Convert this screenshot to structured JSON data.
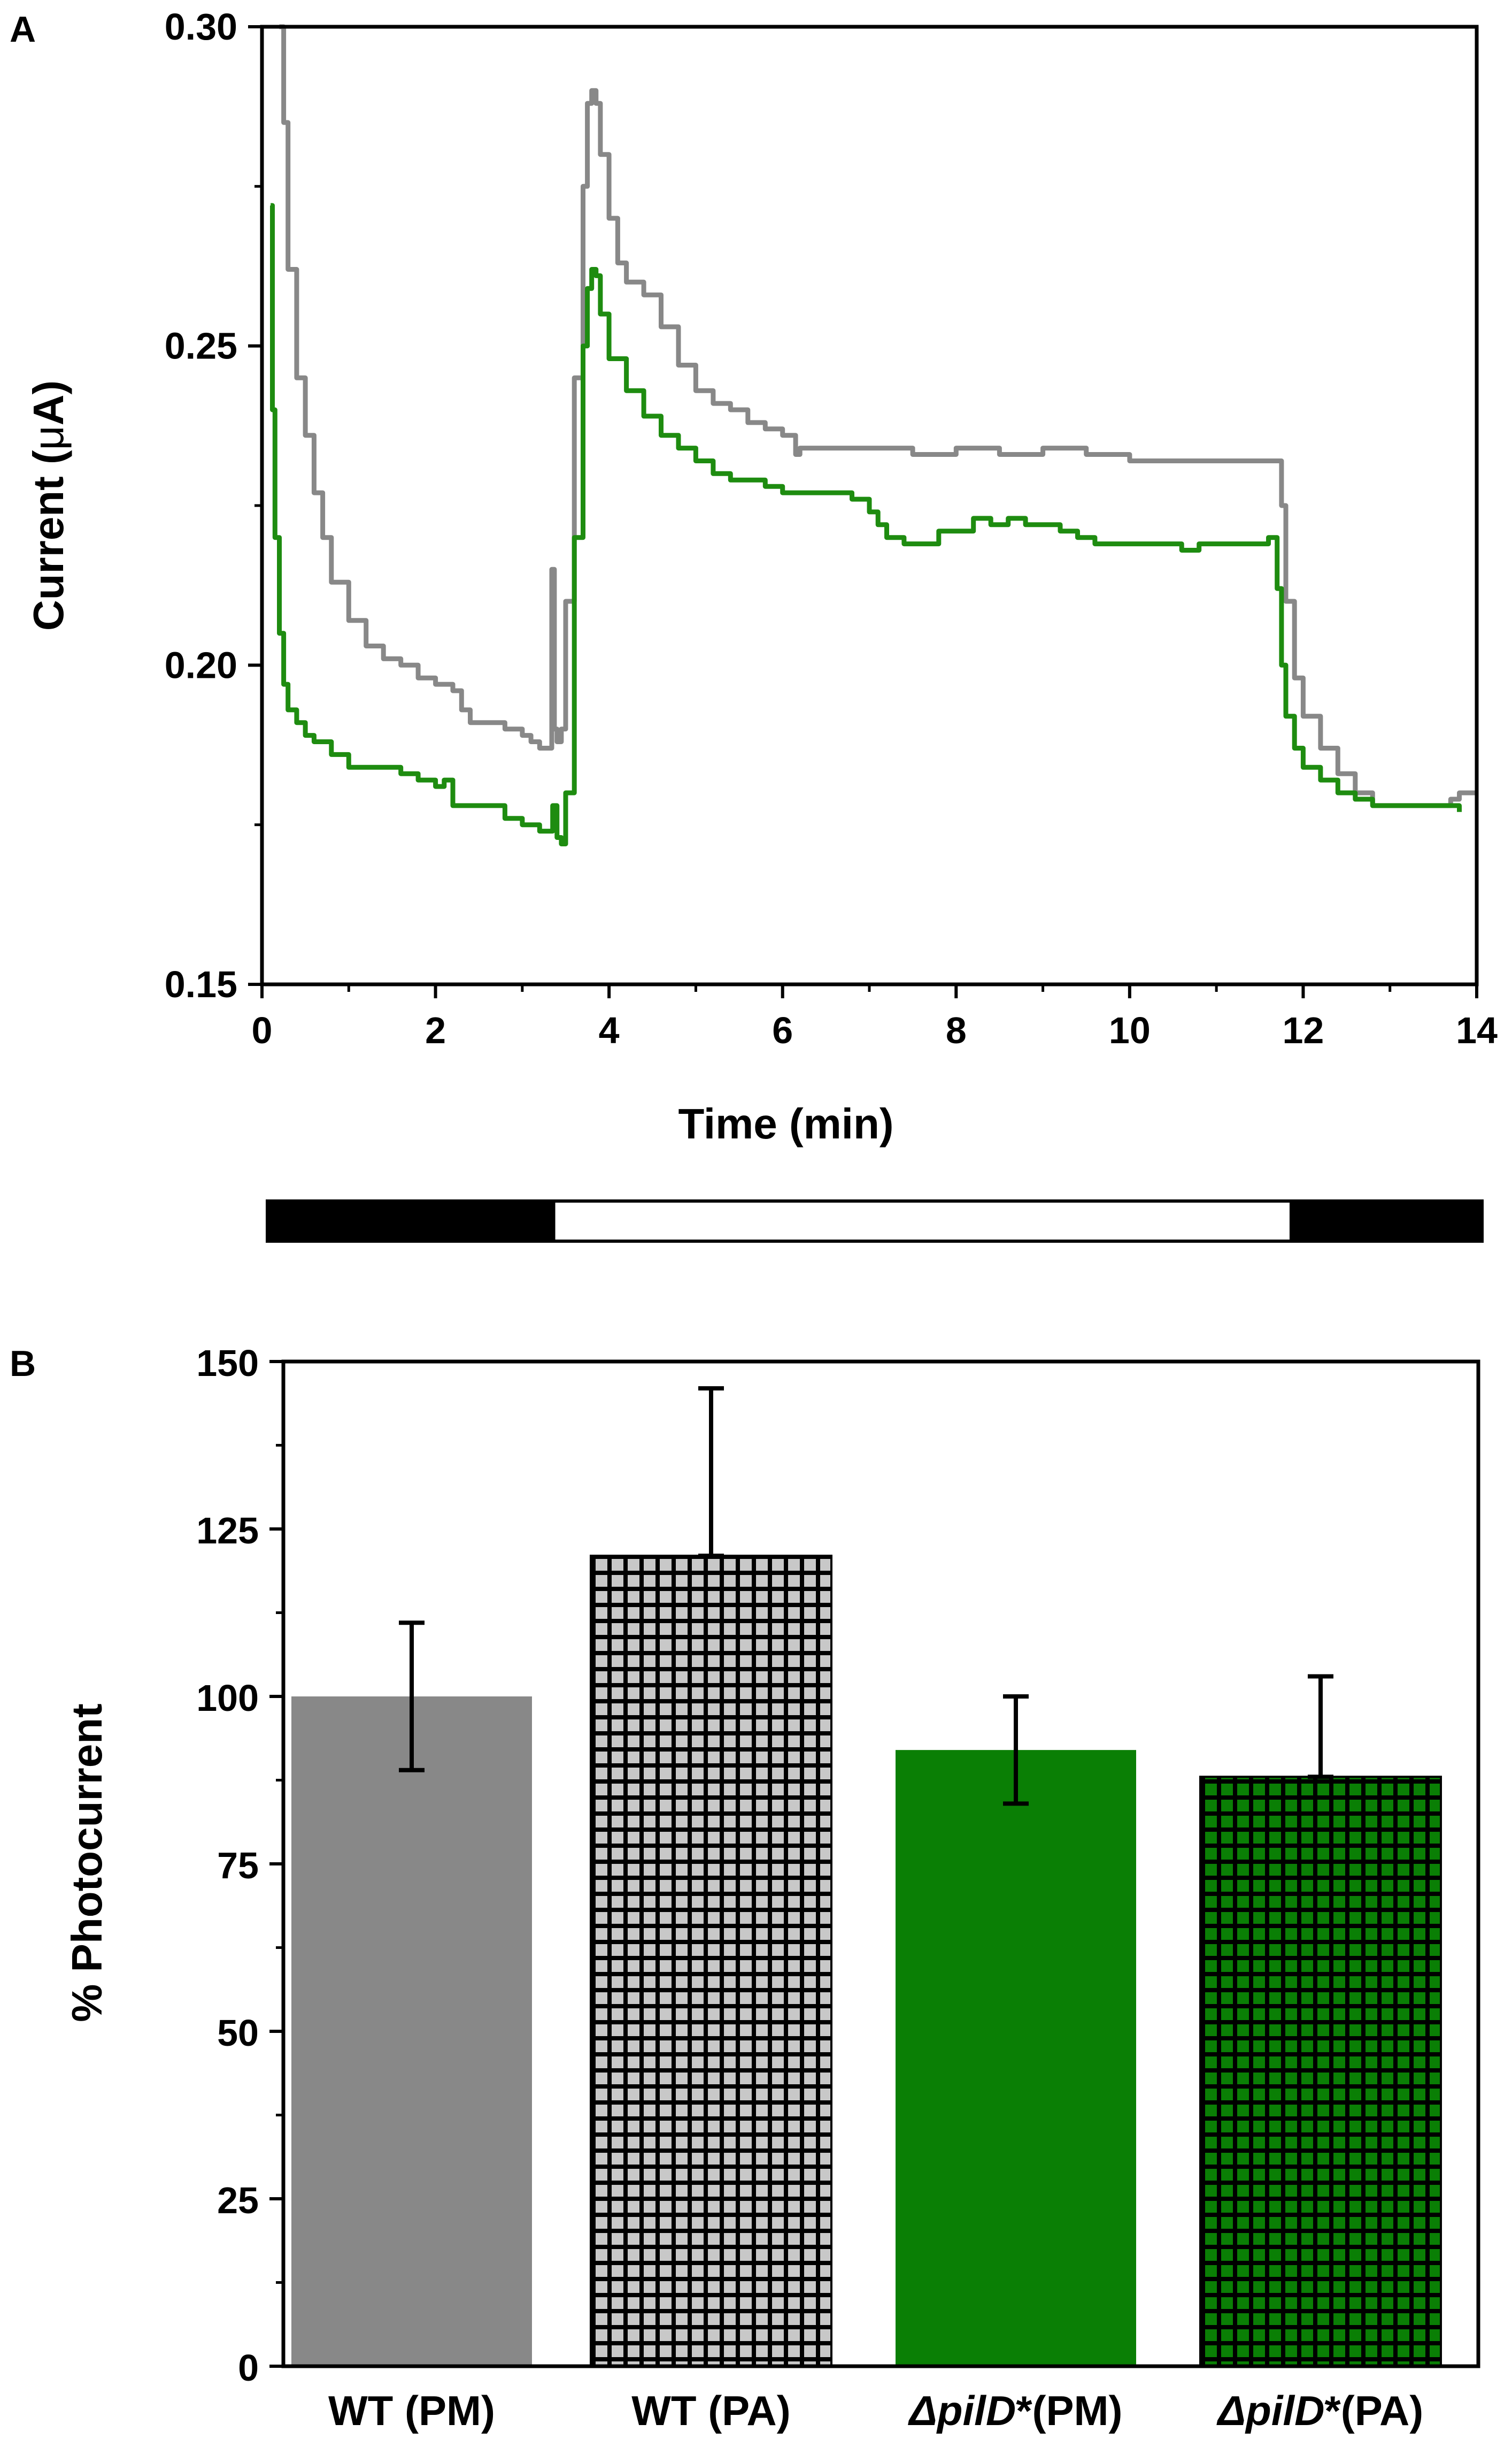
{
  "chart_data": [
    {
      "panel": "A",
      "type": "line",
      "xlabel": "Time (min)",
      "ylabel_prefix": "Current (",
      "ylabel_mu": "μ",
      "ylabel_suffix": "A)",
      "xlim": [
        0,
        14
      ],
      "ylim": [
        0.15,
        0.3
      ],
      "xticks": [
        0,
        2,
        4,
        6,
        8,
        10,
        12,
        14
      ],
      "xtick_labels": [
        "0",
        "2",
        "4",
        "6",
        "8",
        "10",
        "12",
        "14"
      ],
      "yticks": [
        0.15,
        0.2,
        0.25,
        0.3
      ],
      "ytick_labels": [
        "0.15",
        "0.20",
        "0.25",
        "0.30"
      ],
      "series": [
        {
          "name": "gray",
          "color": "#888888",
          "x": [
            0.2,
            0.25,
            0.3,
            0.4,
            0.5,
            0.6,
            0.7,
            0.8,
            1.0,
            1.2,
            1.4,
            1.6,
            1.8,
            2.0,
            2.2,
            2.3,
            2.4,
            2.6,
            2.8,
            3.0,
            3.1,
            3.2,
            3.3,
            3.34,
            3.37,
            3.4,
            3.45,
            3.5,
            3.6,
            3.7,
            3.75,
            3.8,
            3.85,
            3.9,
            4.0,
            4.1,
            4.2,
            4.4,
            4.6,
            4.8,
            5.0,
            5.2,
            5.4,
            5.6,
            5.8,
            6.0,
            6.1,
            6.15,
            6.2,
            6.4,
            6.8,
            7.0,
            7.5,
            8.0,
            8.5,
            9.0,
            9.5,
            10.0,
            10.5,
            11.0,
            11.5,
            11.7,
            11.75,
            11.8,
            11.9,
            12.0,
            12.2,
            12.4,
            12.6,
            12.8,
            13.0,
            13.5,
            13.7,
            13.8,
            14.0
          ],
          "y": [
            0.3,
            0.285,
            0.262,
            0.245,
            0.236,
            0.227,
            0.22,
            0.213,
            0.207,
            0.203,
            0.201,
            0.2,
            0.198,
            0.197,
            0.196,
            0.193,
            0.191,
            0.191,
            0.19,
            0.189,
            0.188,
            0.187,
            0.187,
            0.215,
            0.19,
            0.188,
            0.19,
            0.21,
            0.245,
            0.275,
            0.288,
            0.29,
            0.288,
            0.28,
            0.27,
            0.263,
            0.26,
            0.258,
            0.253,
            0.247,
            0.243,
            0.241,
            0.24,
            0.238,
            0.237,
            0.236,
            0.236,
            0.233,
            0.234,
            0.234,
            0.234,
            0.234,
            0.233,
            0.234,
            0.233,
            0.234,
            0.233,
            0.232,
            0.232,
            0.232,
            0.232,
            0.232,
            0.225,
            0.21,
            0.198,
            0.192,
            0.187,
            0.183,
            0.18,
            0.178,
            0.178,
            0.178,
            0.179,
            0.18,
            0.18
          ]
        },
        {
          "name": "green",
          "color": "#1e8c10",
          "x": [
            0.1,
            0.12,
            0.15,
            0.2,
            0.25,
            0.3,
            0.4,
            0.5,
            0.6,
            0.8,
            1.0,
            1.2,
            1.4,
            1.6,
            1.8,
            2.0,
            2.1,
            2.2,
            2.4,
            2.6,
            2.8,
            3.0,
            3.1,
            3.2,
            3.3,
            3.35,
            3.4,
            3.45,
            3.5,
            3.6,
            3.7,
            3.75,
            3.8,
            3.85,
            3.9,
            4.0,
            4.2,
            4.4,
            4.6,
            4.8,
            5.0,
            5.2,
            5.4,
            5.6,
            5.8,
            6.0,
            6.2,
            6.4,
            6.6,
            6.8,
            7.0,
            7.1,
            7.2,
            7.4,
            7.6,
            7.8,
            8.0,
            8.2,
            8.4,
            8.6,
            8.8,
            9.0,
            9.2,
            9.4,
            9.6,
            9.8,
            10.0,
            10.2,
            10.4,
            10.6,
            10.8,
            11.0,
            11.2,
            11.4,
            11.6,
            11.65,
            11.7,
            11.75,
            11.8,
            11.9,
            12.0,
            12.2,
            12.4,
            12.6,
            12.8,
            13.0,
            13.2,
            13.4,
            13.6,
            13.8
          ],
          "y": [
            0.272,
            0.24,
            0.22,
            0.205,
            0.197,
            0.193,
            0.191,
            0.189,
            0.188,
            0.186,
            0.184,
            0.184,
            0.184,
            0.183,
            0.182,
            0.181,
            0.182,
            0.178,
            0.178,
            0.178,
            0.176,
            0.175,
            0.175,
            0.174,
            0.174,
            0.178,
            0.173,
            0.172,
            0.18,
            0.22,
            0.25,
            0.259,
            0.262,
            0.261,
            0.255,
            0.248,
            0.243,
            0.239,
            0.236,
            0.234,
            0.232,
            0.23,
            0.229,
            0.229,
            0.228,
            0.227,
            0.227,
            0.227,
            0.227,
            0.226,
            0.224,
            0.222,
            0.22,
            0.219,
            0.219,
            0.221,
            0.221,
            0.223,
            0.222,
            0.223,
            0.222,
            0.222,
            0.221,
            0.22,
            0.219,
            0.219,
            0.219,
            0.219,
            0.219,
            0.218,
            0.219,
            0.219,
            0.219,
            0.219,
            0.22,
            0.22,
            0.212,
            0.2,
            0.192,
            0.187,
            0.184,
            0.182,
            0.18,
            0.179,
            0.178,
            0.178,
            0.178,
            0.178,
            0.178,
            0.177
          ]
        }
      ]
    },
    {
      "panel": "B",
      "type": "bar",
      "ylabel": "% Photocurrent",
      "ylim": [
        0,
        150
      ],
      "yticks": [
        0,
        25,
        50,
        75,
        100,
        125,
        150
      ],
      "ytick_labels": [
        "0",
        "25",
        "50",
        "75",
        "100",
        "125",
        "150"
      ],
      "categories": [
        {
          "prefix": "WT (PM)",
          "italic": "",
          "suffix": ""
        },
        {
          "prefix": "WT (PA)",
          "italic": "",
          "suffix": ""
        },
        {
          "prefix": "",
          "italic": "ΔpilD",
          "suffix": "*(PM)"
        },
        {
          "prefix": "",
          "italic": "ΔpilD",
          "suffix": "*(PA)"
        }
      ],
      "values": [
        100,
        121,
        92,
        88
      ],
      "error_upper": [
        111,
        146,
        100,
        103
      ],
      "error_lower": [
        89,
        121,
        84,
        88
      ],
      "fills": [
        "#888888",
        "#c8c8c8",
        "#0a7f05",
        "#0a7f05"
      ],
      "patterned": [
        false,
        true,
        false,
        true
      ]
    }
  ],
  "light_bar": {
    "segments": [
      {
        "state": "dark",
        "start": 0,
        "end": 3.3
      },
      {
        "state": "light",
        "start": 3.3,
        "end": 11.8
      },
      {
        "state": "dark",
        "start": 11.8,
        "end": 14
      }
    ]
  }
}
